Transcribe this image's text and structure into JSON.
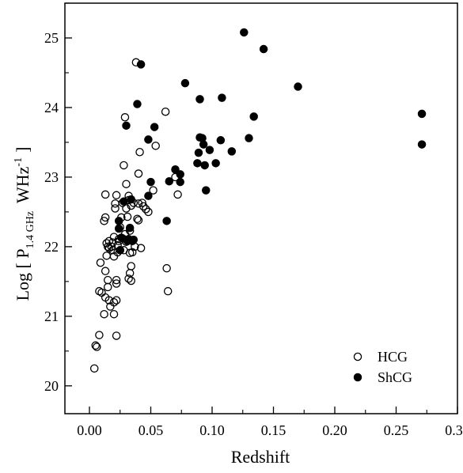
{
  "chart_data": {
    "type": "scatter",
    "xlabel": "Redshift",
    "ylabel": "Log [ P",
    "ylabel_subscript": "1.4 GHz",
    "ylabel_unit": "WHz",
    "ylabel_exponent": "-1",
    "ylabel_close": "]",
    "xlim": [
      -0.02,
      0.3
    ],
    "ylim": [
      19.6,
      25.5
    ],
    "xticks": [
      0.0,
      0.05,
      0.1,
      0.15,
      0.2,
      0.25,
      0.3
    ],
    "xtick_labels": [
      "0.00",
      "0.05",
      "0.10",
      "0.15",
      "0.20",
      "0.25",
      "0.30"
    ],
    "yticks": [
      20,
      21,
      22,
      23,
      24,
      25
    ],
    "ytick_labels": [
      "20",
      "21",
      "22",
      "23",
      "24",
      "25"
    ],
    "grid": false,
    "legend_position": "bottom-right",
    "series": [
      {
        "name": "HCG",
        "marker": "open-circle",
        "points": [
          [
            0.004,
            20.25
          ],
          [
            0.005,
            20.58
          ],
          [
            0.006,
            20.56
          ],
          [
            0.008,
            20.73
          ],
          [
            0.008,
            21.36
          ],
          [
            0.01,
            21.34
          ],
          [
            0.009,
            21.77
          ],
          [
            0.012,
            21.03
          ],
          [
            0.013,
            21.27
          ],
          [
            0.013,
            21.65
          ],
          [
            0.014,
            21.87
          ],
          [
            0.012,
            22.37
          ],
          [
            0.013,
            22.42
          ],
          [
            0.013,
            22.75
          ],
          [
            0.015,
            22.0
          ],
          [
            0.016,
            22.08
          ],
          [
            0.014,
            22.05
          ],
          [
            0.015,
            21.42
          ],
          [
            0.015,
            21.52
          ],
          [
            0.016,
            21.23
          ],
          [
            0.017,
            21.14
          ],
          [
            0.016,
            21.98
          ],
          [
            0.018,
            22.0
          ],
          [
            0.019,
            21.95
          ],
          [
            0.019,
            22.06
          ],
          [
            0.02,
            21.03
          ],
          [
            0.02,
            21.2
          ],
          [
            0.02,
            21.86
          ],
          [
            0.02,
            22.14
          ],
          [
            0.021,
            22.55
          ],
          [
            0.021,
            22.62
          ],
          [
            0.022,
            22.74
          ],
          [
            0.022,
            21.47
          ],
          [
            0.022,
            21.52
          ],
          [
            0.022,
            21.23
          ],
          [
            0.022,
            20.72
          ],
          [
            0.023,
            21.92
          ],
          [
            0.023,
            22.02
          ],
          [
            0.024,
            22.08
          ],
          [
            0.024,
            22.11
          ],
          [
            0.025,
            22.28
          ],
          [
            0.025,
            21.95
          ],
          [
            0.026,
            22.42
          ],
          [
            0.027,
            22.12
          ],
          [
            0.027,
            22.63
          ],
          [
            0.028,
            21.95
          ],
          [
            0.028,
            23.17
          ],
          [
            0.029,
            23.86
          ],
          [
            0.029,
            22.18
          ],
          [
            0.03,
            22.07
          ],
          [
            0.03,
            22.55
          ],
          [
            0.03,
            22.9
          ],
          [
            0.031,
            22.43
          ],
          [
            0.032,
            22.73
          ],
          [
            0.032,
            22.67
          ],
          [
            0.033,
            22.23
          ],
          [
            0.034,
            22.09
          ],
          [
            0.034,
            22.59
          ],
          [
            0.032,
            21.54
          ],
          [
            0.033,
            21.62
          ],
          [
            0.034,
            21.72
          ],
          [
            0.034,
            21.51
          ],
          [
            0.033,
            21.91
          ],
          [
            0.035,
            21.92
          ],
          [
            0.036,
            22.63
          ],
          [
            0.037,
            22.0
          ],
          [
            0.038,
            24.65
          ],
          [
            0.039,
            22.4
          ],
          [
            0.04,
            22.62
          ],
          [
            0.04,
            23.05
          ],
          [
            0.04,
            22.38
          ],
          [
            0.041,
            23.36
          ],
          [
            0.042,
            21.98
          ],
          [
            0.043,
            22.63
          ],
          [
            0.044,
            22.58
          ],
          [
            0.046,
            22.54
          ],
          [
            0.048,
            22.5
          ],
          [
            0.052,
            22.81
          ],
          [
            0.054,
            23.45
          ],
          [
            0.062,
            23.94
          ],
          [
            0.063,
            21.69
          ],
          [
            0.064,
            21.36
          ],
          [
            0.072,
            22.75
          ],
          [
            0.07,
            23.0
          ]
        ]
      },
      {
        "name": "ShCG",
        "marker": "filled-circle",
        "points": [
          [
            0.024,
            22.37
          ],
          [
            0.024,
            22.26
          ],
          [
            0.025,
            21.95
          ],
          [
            0.026,
            22.13
          ],
          [
            0.028,
            22.65
          ],
          [
            0.03,
            23.74
          ],
          [
            0.031,
            22.08
          ],
          [
            0.032,
            22.11
          ],
          [
            0.033,
            22.27
          ],
          [
            0.034,
            22.68
          ],
          [
            0.035,
            22.08
          ],
          [
            0.036,
            22.1
          ],
          [
            0.039,
            24.05
          ],
          [
            0.042,
            24.62
          ],
          [
            0.048,
            22.73
          ],
          [
            0.048,
            23.54
          ],
          [
            0.05,
            22.93
          ],
          [
            0.053,
            23.72
          ],
          [
            0.063,
            22.37
          ],
          [
            0.065,
            22.94
          ],
          [
            0.07,
            23.11
          ],
          [
            0.074,
            23.04
          ],
          [
            0.074,
            22.93
          ],
          [
            0.078,
            24.35
          ],
          [
            0.088,
            23.2
          ],
          [
            0.089,
            23.35
          ],
          [
            0.09,
            23.57
          ],
          [
            0.09,
            24.12
          ],
          [
            0.092,
            23.56
          ],
          [
            0.093,
            23.47
          ],
          [
            0.094,
            23.17
          ],
          [
            0.095,
            22.81
          ],
          [
            0.098,
            23.39
          ],
          [
            0.103,
            23.2
          ],
          [
            0.107,
            23.53
          ],
          [
            0.108,
            24.14
          ],
          [
            0.116,
            23.37
          ],
          [
            0.126,
            25.08
          ],
          [
            0.13,
            23.56
          ],
          [
            0.134,
            23.87
          ],
          [
            0.142,
            24.84
          ],
          [
            0.17,
            24.3
          ],
          [
            0.271,
            23.91
          ],
          [
            0.271,
            23.47
          ]
        ]
      }
    ]
  }
}
